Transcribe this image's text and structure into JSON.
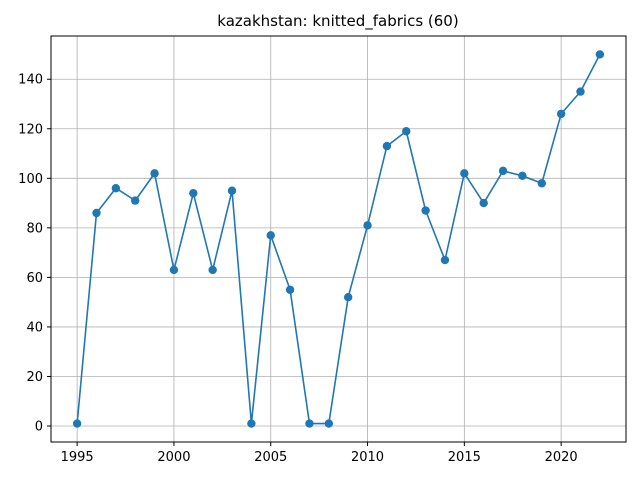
{
  "chart_data": {
    "type": "line",
    "title": "kazakhstan: knitted_fabrics (60)",
    "xlabel": "",
    "ylabel": "",
    "x": [
      1995,
      1996,
      1997,
      1998,
      1999,
      2000,
      2001,
      2002,
      2003,
      2004,
      2005,
      2006,
      2007,
      2008,
      2009,
      2010,
      2011,
      2012,
      2013,
      2014,
      2015,
      2016,
      2017,
      2018,
      2019,
      2020,
      2021,
      2022
    ],
    "series": [
      {
        "values": [
          1,
          86,
          96,
          91,
          102,
          63,
          94,
          63,
          95,
          1,
          77,
          55,
          1,
          1,
          52,
          81,
          113,
          119,
          87,
          67,
          102,
          90,
          103,
          101,
          98,
          126,
          135,
          150
        ],
        "color": "#1f77b4"
      }
    ],
    "xlim": [
      1993.65,
      2023.35
    ],
    "ylim": [
      -6.45,
      157.45
    ],
    "xticks": [
      1995,
      2000,
      2005,
      2010,
      2015,
      2020
    ],
    "yticks": [
      0,
      20,
      40,
      60,
      80,
      100,
      120,
      140
    ],
    "grid": true,
    "marker": "circle"
  }
}
